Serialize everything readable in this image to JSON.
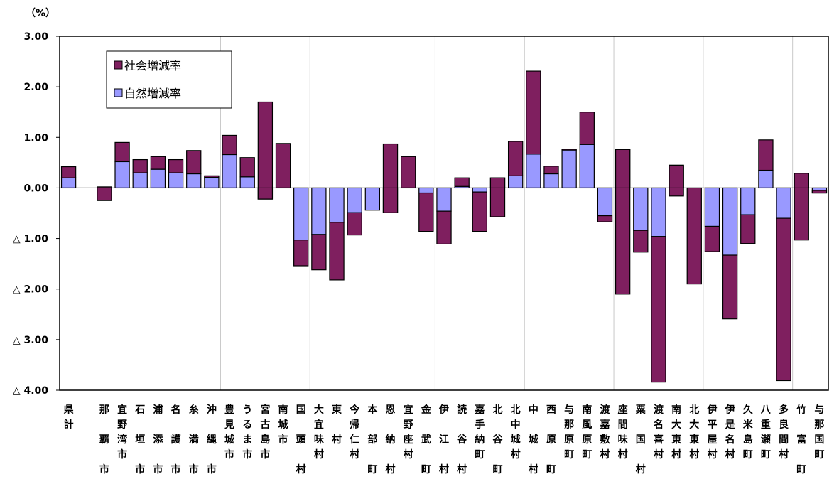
{
  "chart_data": {
    "type": "bar",
    "stacked": true,
    "unit_label": "（%）",
    "ylim": [
      -4,
      3
    ],
    "y_ticks": [
      3,
      2,
      1,
      0,
      -1,
      -2,
      -3,
      -4
    ],
    "y_tick_labels": [
      "3.00",
      "2.00",
      "1.00",
      "0.00",
      "△ 1.00",
      "△ 2.00",
      "△ 3.00",
      "△ 4.00"
    ],
    "grid": "vertical group separators",
    "legend_position": "top-left inside plot",
    "categories": [
      "県計",
      "",
      "那覇市",
      "宜野湾市",
      "石垣市",
      "浦添市",
      "名護市",
      "糸満市",
      "沖縄市",
      "豊見城市",
      "うるま市",
      "宮古島市",
      "南城市",
      "国頭村",
      "大宜味村",
      "東村",
      "今帰仁村",
      "本部町",
      "恩納村",
      "宜野座村",
      "金武町",
      "伊江村",
      "読谷村",
      "嘉手納町",
      "北谷町",
      "北中城村",
      "中城村",
      "西原町",
      "与那原町",
      "南風原町",
      "渡嘉敷村",
      "座間味村",
      "粟国村",
      "渡名喜村",
      "南大東村",
      "北大東村",
      "伊平屋村",
      "伊是名村",
      "久米島町",
      "八重瀬町",
      "多良間村",
      "竹富町",
      "与那国町"
    ],
    "series": [
      {
        "name": "自然増減率",
        "color": "#9999ff",
        "values": [
          0.2,
          null,
          0.02,
          0.52,
          0.3,
          0.37,
          0.3,
          0.28,
          0.21,
          0.66,
          0.22,
          -0.22,
          0.0,
          -1.03,
          -0.92,
          -0.68,
          -0.49,
          -0.44,
          -0.49,
          0.0,
          -0.1,
          -0.46,
          0.03,
          -0.08,
          0.2,
          0.24,
          0.67,
          0.28,
          0.75,
          0.86,
          -0.67,
          0.76,
          -0.84,
          -0.96,
          0.45,
          0.0,
          -0.76,
          -1.33,
          -0.53,
          0.35,
          -0.6,
          0.29,
          -0.1
        ]
      },
      {
        "name": "社会増減率",
        "color": "#7f1f5f",
        "values": [
          0.22,
          null,
          -0.27,
          0.38,
          0.26,
          0.25,
          0.26,
          0.46,
          0.03,
          0.38,
          0.38,
          1.92,
          0.88,
          -0.51,
          -0.7,
          -1.14,
          -0.44,
          0.0,
          1.36,
          0.62,
          -0.76,
          -0.65,
          0.17,
          -0.78,
          -0.77,
          0.68,
          1.64,
          0.15,
          0.02,
          0.64,
          0.12,
          -2.86,
          -0.43,
          -2.88,
          -0.61,
          -1.9,
          -0.5,
          -1.26,
          -0.57,
          0.6,
          -3.21,
          -1.32,
          0.05
        ]
      }
    ]
  },
  "category_lines": [
    [
      "県",
      "計",
      "",
      "",
      ""
    ],
    [
      "",
      "",
      "",
      "",
      ""
    ],
    [
      "那",
      "",
      "覇",
      "",
      "市"
    ],
    [
      "宜",
      "野",
      "湾",
      "市",
      ""
    ],
    [
      "石",
      "",
      "垣",
      "",
      "市"
    ],
    [
      "浦",
      "",
      "添",
      "",
      "市"
    ],
    [
      "名",
      "",
      "護",
      "",
      "市"
    ],
    [
      "糸",
      "",
      "満",
      "",
      "市"
    ],
    [
      "沖",
      "",
      "縄",
      "",
      "市"
    ],
    [
      "豊",
      "見",
      "城",
      "市",
      ""
    ],
    [
      "う",
      "る",
      "ま",
      "市",
      ""
    ],
    [
      "宮",
      "古",
      "島",
      "市",
      ""
    ],
    [
      "南",
      "城",
      "市",
      "",
      ""
    ],
    [
      "国",
      "",
      "頭",
      "",
      "村"
    ],
    [
      "大",
      "宜",
      "味",
      "村",
      ""
    ],
    [
      "東",
      "",
      "村",
      "",
      ""
    ],
    [
      "今",
      "帰",
      "仁",
      "村",
      ""
    ],
    [
      "本",
      "",
      "部",
      "",
      "町"
    ],
    [
      "恩",
      "",
      "納",
      "",
      "村"
    ],
    [
      "宜",
      "野",
      "座",
      "村",
      ""
    ],
    [
      "金",
      "",
      "武",
      "",
      "町"
    ],
    [
      "伊",
      "",
      "江",
      "",
      "村"
    ],
    [
      "読",
      "",
      "谷",
      "",
      "村"
    ],
    [
      "嘉",
      "手",
      "納",
      "町",
      ""
    ],
    [
      "北",
      "",
      "谷",
      "",
      "町"
    ],
    [
      "北",
      "中",
      "城",
      "村",
      ""
    ],
    [
      "中",
      "",
      "城",
      "",
      "村"
    ],
    [
      "西",
      "",
      "原",
      "",
      "町"
    ],
    [
      "与",
      "那",
      "原",
      "町",
      ""
    ],
    [
      "南",
      "風",
      "原",
      "町",
      ""
    ],
    [
      "渡",
      "嘉",
      "敷",
      "村",
      ""
    ],
    [
      "座",
      "間",
      "味",
      "村",
      ""
    ],
    [
      "粟",
      "",
      "国",
      "",
      "村"
    ],
    [
      "渡",
      "名",
      "喜",
      "村",
      ""
    ],
    [
      "南",
      "大",
      "東",
      "村",
      ""
    ],
    [
      "北",
      "大",
      "東",
      "村",
      ""
    ],
    [
      "伊",
      "平",
      "屋",
      "村",
      ""
    ],
    [
      "伊",
      "是",
      "名",
      "村",
      ""
    ],
    [
      "久",
      "米",
      "島",
      "町",
      ""
    ],
    [
      "八",
      "重",
      "瀬",
      "町",
      ""
    ],
    [
      "多",
      "良",
      "間",
      "村",
      ""
    ],
    [
      "竹",
      "",
      "富",
      "",
      "町"
    ],
    [
      "与",
      "那",
      "国",
      "町",
      ""
    ]
  ],
  "legend": {
    "items": [
      {
        "label": "社会増減率",
        "color": "#7f1f5f"
      },
      {
        "label": "自然増減率",
        "color": "#9999ff"
      }
    ]
  }
}
